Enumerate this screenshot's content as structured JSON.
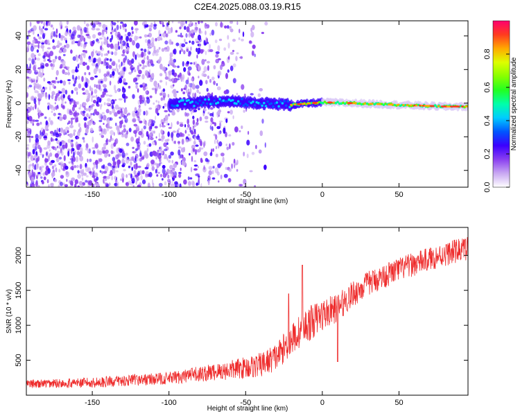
{
  "title": "C2E4.2025.088.03.19.R15",
  "colors": {
    "snr_line": "#ee2b2b",
    "colormap": [
      "#ffffff",
      "#c9a8f2",
      "#8a3ff0",
      "#3b00ff",
      "#0055ff",
      "#00ccff",
      "#00ff88",
      "#55ff00",
      "#ddff00",
      "#ffaa00",
      "#ff3b1f",
      "#ff006e"
    ]
  },
  "chart_data": [
    {
      "type": "heatmap",
      "name": "spectrogram",
      "xlabel": "Height of straight line (km)",
      "ylabel": "Frequency (Hz)",
      "xlim": [
        -193,
        95
      ],
      "ylim": [
        -50,
        49
      ],
      "xticks": [
        -150,
        -100,
        -50,
        0,
        50
      ],
      "xtick_labels": [
        "-150",
        "-100",
        "-50",
        "0",
        "50"
      ],
      "yticks": [
        -40,
        -20,
        0,
        20,
        40
      ],
      "ytick_labels": [
        "-40",
        "-20",
        "0",
        "20",
        "40"
      ],
      "signal_track": {
        "description_free_points_km": [
          -100,
          -80,
          -60,
          -40,
          -20,
          0,
          20,
          50,
          80,
          95
        ],
        "center_freq_hz": [
          -1,
          0.5,
          1,
          0,
          -1,
          0.5,
          0,
          -1,
          -2,
          -2
        ]
      },
      "colorbar": {
        "label": "Normalized spectral amplitude",
        "range": [
          0,
          1
        ],
        "ticks": [
          0.0,
          0.2,
          0.4,
          0.6,
          0.8
        ],
        "tick_labels": [
          "0.0",
          "0.2",
          "0.4",
          "0.6",
          "0.8"
        ]
      }
    },
    {
      "type": "line",
      "name": "snr",
      "xlabel": "Height of straight line (km)",
      "ylabel": "SNR (10 * v/v)",
      "xlim": [
        -193,
        95
      ],
      "ylim": [
        0,
        2400
      ],
      "xticks": [
        -150,
        -100,
        -50,
        0,
        50
      ],
      "xtick_labels": [
        "-150",
        "-100",
        "-50",
        "0",
        "50"
      ],
      "yticks": [
        500,
        1000,
        1500,
        2000
      ],
      "ytick_labels": [
        "500",
        "1000",
        "1500",
        "2000"
      ],
      "trend_x": [
        -193,
        -150,
        -120,
        -100,
        -80,
        -60,
        -40,
        -30,
        -20,
        -10,
        0,
        10,
        20,
        30,
        50,
        70,
        90,
        95
      ],
      "trend_y": [
        160,
        180,
        220,
        240,
        300,
        360,
        430,
        550,
        800,
        1000,
        1150,
        1250,
        1450,
        1600,
        1800,
        1950,
        2080,
        2100
      ],
      "noise_amp_x": [
        -193,
        -100,
        -60,
        -30,
        -10,
        10,
        30,
        60,
        95
      ],
      "noise_amp_y": [
        60,
        90,
        140,
        200,
        260,
        200,
        180,
        170,
        170
      ],
      "spikes": [
        {
          "x": -13,
          "y": 1860
        },
        {
          "x": -22,
          "y": 1450
        },
        {
          "x": 10,
          "y": 480
        }
      ]
    }
  ]
}
